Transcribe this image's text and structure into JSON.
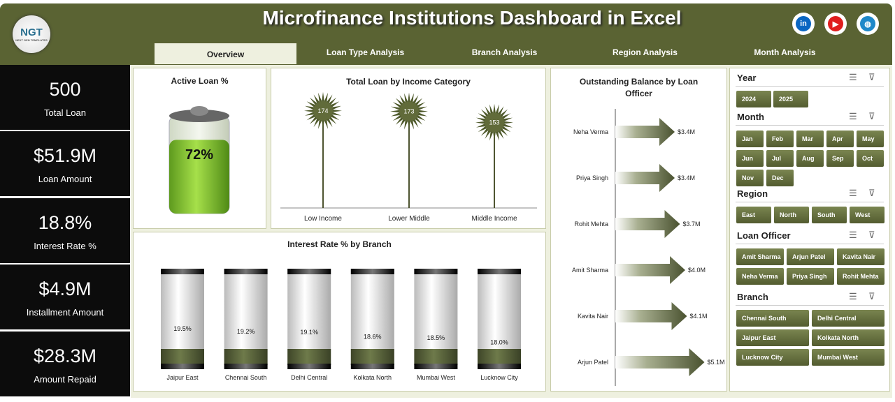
{
  "header": {
    "title": "Microfinance Institutions Dashboard in Excel",
    "logo_text": "NGT",
    "logo_sub": "NEXT GEN TEMPLATES",
    "social": [
      {
        "name": "linkedin-icon",
        "label": "in",
        "color": "#0a66c2"
      },
      {
        "name": "youtube-icon",
        "label": "▶",
        "color": "#e01e1e"
      },
      {
        "name": "globe-icon",
        "label": "◍",
        "color": "#1e88c9"
      }
    ]
  },
  "tabs": [
    {
      "label": "Overview"
    },
    {
      "label": "Loan Type Analysis"
    },
    {
      "label": "Branch  Analysis"
    },
    {
      "label": "Region Analysis"
    },
    {
      "label": "Month Analysis"
    }
  ],
  "kpis": [
    {
      "value": "500",
      "label": "Total Loan"
    },
    {
      "value": "$51.9M",
      "label": "Loan Amount"
    },
    {
      "value": "18.8%",
      "label": "Interest Rate %"
    },
    {
      "value": "$4.9M",
      "label": "Installment Amount"
    },
    {
      "value": "$28.3M",
      "label": "Amount Repaid"
    }
  ],
  "active_loan": {
    "title": "Active Loan %",
    "value": "72%",
    "fraction": 0.72
  },
  "income_chart": {
    "title": "Total Loan by Income Category",
    "categories": [
      "Low Income",
      "Lower Middle",
      "Middle Income"
    ],
    "values": [
      174,
      173,
      153
    ]
  },
  "branch_chart": {
    "title": "Interest Rate % by Branch",
    "categories": [
      "Jaipur East",
      "Chennai South",
      "Delhi Central",
      "Kolkata North",
      "Mumbai West",
      "Lucknow City"
    ],
    "values": [
      19.5,
      19.2,
      19.1,
      18.6,
      18.5,
      18.0
    ],
    "labels": [
      "19.5%",
      "19.2%",
      "19.1%",
      "18.6%",
      "18.5%",
      "18.0%"
    ]
  },
  "officer_chart": {
    "title": "Outstanding Balance by Loan Officer",
    "categories": [
      "Neha Verma",
      "Priya Singh",
      "Rohit Mehta",
      "Amit Sharma",
      "Kavita Nair",
      "Arjun Patel"
    ],
    "values": [
      3.4,
      3.4,
      3.7,
      4.0,
      4.1,
      5.1
    ],
    "labels": [
      "$3.4M",
      "$3.4M",
      "$3.7M",
      "$4.0M",
      "$4.1M",
      "$5.1M"
    ]
  },
  "slicers": {
    "year": {
      "title": "Year",
      "items": [
        "2024",
        "2025"
      ]
    },
    "month": {
      "title": "Month",
      "items": [
        "Jan",
        "Feb",
        "Mar",
        "Apr",
        "May",
        "Jun",
        "Jul",
        "Aug",
        "Sep",
        "Oct",
        "Nov",
        "Dec"
      ]
    },
    "region": {
      "title": "Region",
      "items": [
        "East",
        "North",
        "South",
        "West"
      ]
    },
    "officer": {
      "title": "Loan Officer",
      "items": [
        "Amit Sharma",
        "Arjun Patel",
        "Kavita Nair",
        "Neha Verma",
        "Priya Singh",
        "Rohit Mehta"
      ]
    },
    "branch": {
      "title": "Branch",
      "items": [
        "Chennai South",
        "Delhi Central",
        "Jaipur East",
        "Kolkata North",
        "Lucknow City",
        "Mumbai West"
      ]
    }
  }
}
